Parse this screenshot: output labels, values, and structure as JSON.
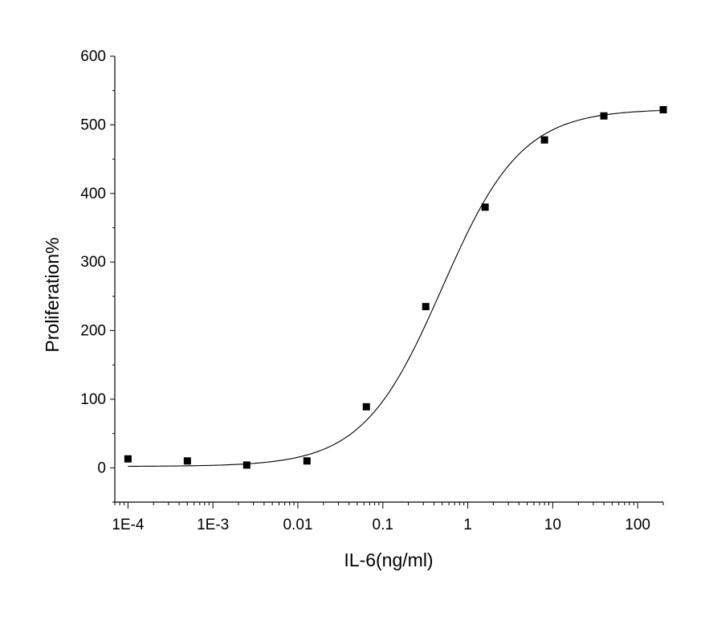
{
  "chart_data": {
    "type": "scatter",
    "title": "",
    "xlabel": "IL-6(ng/ml)",
    "ylabel": "Proliferation%",
    "x_scale": "log",
    "xlim": [
      7e-05,
      200
    ],
    "ylim": [
      -50,
      600
    ],
    "x_ticks": [
      {
        "value": 0.0001,
        "label": "1E-4"
      },
      {
        "value": 0.001,
        "label": "1E-3"
      },
      {
        "value": 0.01,
        "label": "0.01"
      },
      {
        "value": 0.1,
        "label": "0.1"
      },
      {
        "value": 1,
        "label": "1"
      },
      {
        "value": 10,
        "label": "10"
      },
      {
        "value": 100,
        "label": "100"
      }
    ],
    "y_ticks": [
      {
        "value": 0,
        "label": "0"
      },
      {
        "value": 100,
        "label": "100"
      },
      {
        "value": 200,
        "label": "200"
      },
      {
        "value": 300,
        "label": "300"
      },
      {
        "value": 400,
        "label": "400"
      },
      {
        "value": 500,
        "label": "500"
      },
      {
        "value": 600,
        "label": "600"
      }
    ],
    "grid": false,
    "legend": "none",
    "points": {
      "x": [
        0.0001,
        0.0005,
        0.0025,
        0.0128,
        0.064,
        0.32,
        1.6,
        8,
        40,
        200
      ],
      "y": [
        13,
        10,
        4,
        10,
        89,
        235,
        380,
        478,
        513,
        522
      ]
    },
    "fit": {
      "model": "four-parameter logistic",
      "bottom": 2,
      "top": 523,
      "ec50": 0.5,
      "hill": 0.93
    },
    "marker_color": "#000000",
    "line_color": "#000000"
  }
}
